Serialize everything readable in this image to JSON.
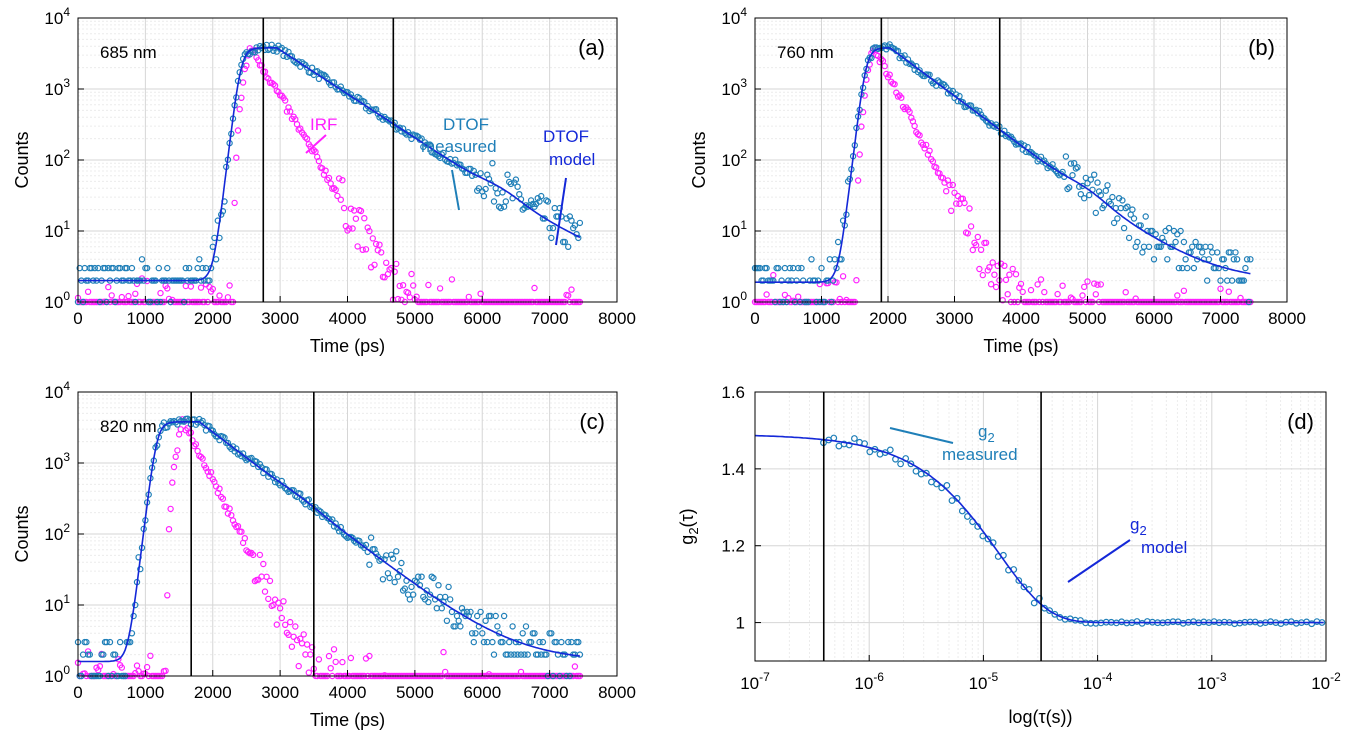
{
  "colors": {
    "irf": "#ff20ff",
    "measured": "#1f7fb8",
    "model": "#1428d8",
    "axis": "#000000",
    "grid_major": "#d6d6d6",
    "grid_minor": "#ececec"
  },
  "chart_data": [
    {
      "id": "a",
      "type": "scatter",
      "panel_label": "(a)",
      "annotation_wavelength": "685 nm",
      "xlabel": "Time (ps)",
      "ylabel": "Counts",
      "yscale": "log",
      "xlim": [
        0,
        8000
      ],
      "ylim": [
        1,
        10000
      ],
      "xticks": [
        "0",
        "1000",
        "2000",
        "3000",
        "4000",
        "5000",
        "6000",
        "7000",
        "8000"
      ],
      "yticks": [
        "10^0",
        "10^1",
        "10^2",
        "10^3",
        "10^4"
      ],
      "vlines": [
        2750,
        4680
      ],
      "params": {
        "start": 0,
        "onset": 2300,
        "peak_irf": 2560,
        "peak": 2950,
        "tau": 700,
        "base": 2.0,
        "tail_bump": [
          6200,
          6.0
        ],
        "irf_tau": 270
      },
      "labels": {
        "irf": "IRF",
        "measured": [
          "DTOF",
          "measured"
        ],
        "model": [
          "DTOF",
          "model"
        ]
      },
      "series": [
        {
          "name": "IRF",
          "style": "markers"
        },
        {
          "name": "DTOF measured",
          "style": "markers"
        },
        {
          "name": "DTOF model",
          "style": "line"
        }
      ]
    },
    {
      "id": "b",
      "type": "scatter",
      "panel_label": "(b)",
      "annotation_wavelength": "760 nm",
      "xlabel": "Time (ps)",
      "ylabel": "Counts",
      "yscale": "log",
      "xlim": [
        0,
        8000
      ],
      "ylim": [
        1,
        10000
      ],
      "xticks": [
        "0",
        "1000",
        "2000",
        "3000",
        "4000",
        "5000",
        "6000",
        "7000",
        "8000"
      ],
      "yticks": [
        "10^0",
        "10^1",
        "10^2",
        "10^3",
        "10^4"
      ],
      "vlines": [
        1900,
        3680
      ],
      "params": {
        "start": 0,
        "onset": 1550,
        "peak_irf": 1780,
        "peak": 2030,
        "tau": 620,
        "base": 1.9,
        "tail_bump": [
          4900,
          6.0
        ],
        "irf_tau": 240
      },
      "series": [
        {
          "name": "IRF",
          "style": "markers"
        },
        {
          "name": "DTOF measured",
          "style": "markers"
        },
        {
          "name": "DTOF model",
          "style": "line"
        }
      ]
    },
    {
      "id": "c",
      "type": "scatter",
      "panel_label": "(c)",
      "annotation_wavelength": "820 nm",
      "xlabel": "Time (ps)",
      "ylabel": "Counts",
      "yscale": "log",
      "xlim": [
        0,
        8000
      ],
      "ylim": [
        1,
        10000
      ],
      "xticks": [
        "0",
        "1000",
        "2000",
        "3000",
        "4000",
        "5000",
        "6000",
        "7000",
        "8000"
      ],
      "yticks": [
        "10^0",
        "10^1",
        "10^2",
        "10^3",
        "10^4"
      ],
      "vlines": [
        1680,
        3500
      ],
      "params": {
        "start": 0,
        "onset": 1050,
        "peak_irf": 1560,
        "peak": 1800,
        "tau": 600,
        "base": 1.6,
        "tail_bump": [
          3200,
          22.0
        ],
        "irf_tau": 230
      },
      "series": [
        {
          "name": "IRF",
          "style": "markers"
        },
        {
          "name": "DTOF measured",
          "style": "markers"
        },
        {
          "name": "DTOF model",
          "style": "line"
        }
      ]
    },
    {
      "id": "d",
      "type": "scatter",
      "panel_label": "(d)",
      "xlabel": "log(τ(s))",
      "ylabel": "g2(τ)",
      "xscale": "log",
      "xlim": [
        1e-07,
        0.01
      ],
      "ylim": [
        0.9,
        1.6
      ],
      "xticks": [
        "10^-7",
        "10^-6",
        "10^-5",
        "10^-4",
        "10^-3",
        "10^-2"
      ],
      "yticks": [
        "1",
        "1.2",
        "1.4",
        "1.6"
      ],
      "vlines": [
        4e-07,
        3.2e-05
      ],
      "params": {
        "beta": 0.49,
        "tau_c": 2.6e-05
      },
      "labels": {
        "measured": [
          "g",
          "2",
          "measured"
        ],
        "model": [
          "g",
          "2",
          "model"
        ]
      },
      "series": [
        {
          "name": "g2 measured",
          "style": "markers"
        },
        {
          "name": "g2 model",
          "style": "line"
        }
      ]
    }
  ]
}
